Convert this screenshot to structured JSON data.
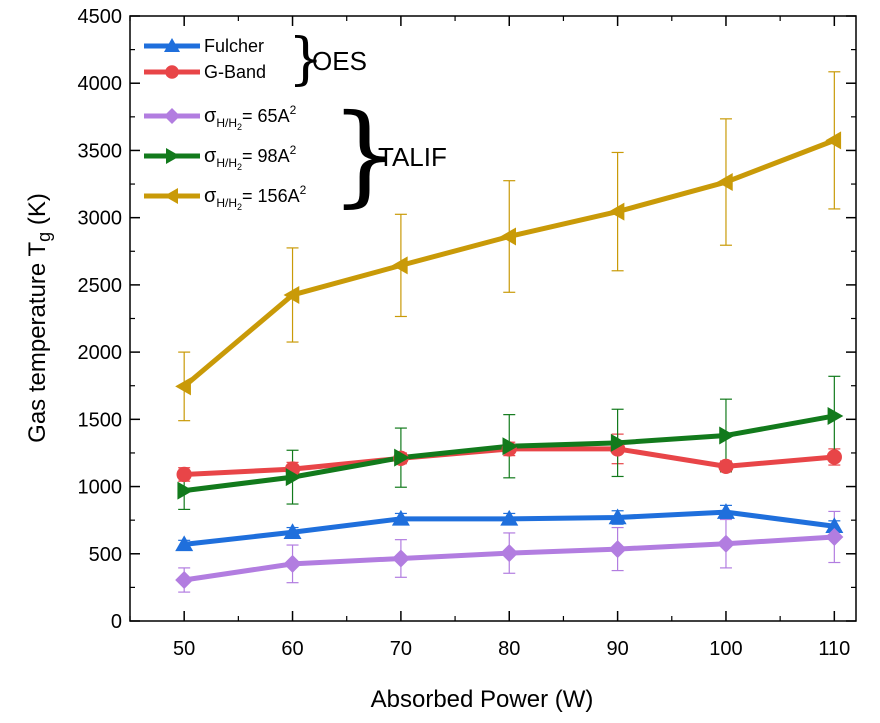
{
  "chart_data": {
    "type": "line",
    "xlabel": "Absorbed Power (W)",
    "ylabel_main": "Gas temperature T",
    "ylabel_sub": "g",
    "ylabel_unit": " (K)",
    "xlim": [
      45,
      112
    ],
    "ylim": [
      0,
      4500
    ],
    "x": [
      50,
      60,
      70,
      80,
      90,
      100,
      110
    ],
    "xticks": [
      50,
      60,
      70,
      80,
      90,
      100,
      110
    ],
    "yticks": [
      0,
      500,
      1000,
      1500,
      2000,
      2500,
      3000,
      3500,
      4000,
      4500
    ],
    "legend_position": "top-left",
    "series": [
      {
        "key": "fulcher",
        "name": "Fulcher",
        "color": "#1f6fdc",
        "marker": "triangle-up",
        "values": [
          570,
          660,
          760,
          760,
          770,
          810,
          705
        ],
        "errors": [
          30,
          35,
          40,
          40,
          50,
          50,
          40
        ]
      },
      {
        "key": "gband",
        "name": "G-Band",
        "color": "#e84548",
        "marker": "circle",
        "values": [
          1090,
          1130,
          1210,
          1280,
          1280,
          1150,
          1220
        ],
        "errors": [
          50,
          50,
          40,
          50,
          110,
          40,
          60
        ]
      },
      {
        "key": "sigma65",
        "name_sub": "H/H",
        "name_sub2": "2",
        "name_rest": "= 65A",
        "name_sup": "2",
        "color": "#b27de0",
        "marker": "diamond",
        "values": [
          305,
          425,
          465,
          505,
          535,
          575,
          625
        ],
        "errors": [
          90,
          140,
          140,
          150,
          160,
          180,
          190
        ]
      },
      {
        "key": "sigma98",
        "name_sub": "H/H",
        "name_sub2": "2",
        "name_rest": "= 98A",
        "name_sup": "2",
        "color": "#127a1c",
        "marker": "triangle-right",
        "values": [
          970,
          1070,
          1215,
          1300,
          1325,
          1380,
          1525
        ],
        "errors": [
          140,
          200,
          220,
          235,
          250,
          270,
          295
        ]
      },
      {
        "key": "sigma156",
        "name_sub": "H/H",
        "name_sub2": "2",
        "name_rest": "= 156A",
        "name_sup": "2",
        "color": "#c99a08",
        "marker": "triangle-left",
        "values": [
          1745,
          2425,
          2645,
          2860,
          3045,
          3265,
          3575
        ],
        "errors": [
          255,
          350,
          380,
          415,
          440,
          470,
          510
        ]
      }
    ],
    "groups": [
      {
        "label": "OES",
        "members": [
          "fulcher",
          "gband"
        ]
      },
      {
        "label": "TALIF",
        "members": [
          "sigma65",
          "sigma98",
          "sigma156"
        ]
      }
    ],
    "sigma_symbol": "σ"
  }
}
